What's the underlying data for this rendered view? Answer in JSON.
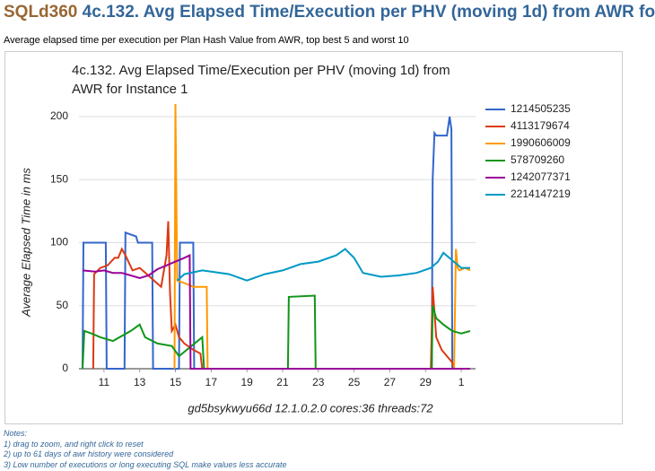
{
  "header": {
    "brand": "SQLd360",
    "title": "4c.132. Avg Elapsed Time/Execution per PHV (moving 1d) from AWR fo"
  },
  "description": "Average elapsed time per execution per Plan Hash Value from AWR, top best 5 and worst 10",
  "chart_data": {
    "type": "line",
    "title": "4c.132. Avg Elapsed Time/Execution per PHV (moving 1d) from AWR for Instance 1",
    "x_label": "gd5bsykwyu66d 12.1.0.2.0 cores:36 threads:72",
    "y_label": "Average Elapsed Time in ms",
    "xlim": [
      9.6,
      31.8
    ],
    "ylim": [
      0,
      210
    ],
    "xticks": [
      11,
      13,
      15,
      17,
      19,
      21,
      23,
      25,
      27,
      29,
      {
        "value": 31,
        "label": "1"
      }
    ],
    "yticks": [
      0,
      50,
      100,
      150,
      200
    ],
    "grid": true,
    "legend": "right",
    "series": [
      {
        "name": "1214505235",
        "color": "#3366cc",
        "x": [
          9.8,
          9.85,
          11.1,
          11.15,
          12.15,
          12.2,
          12.8,
          12.9,
          13.7,
          13.75,
          15.2,
          15.25,
          16.0,
          16.05,
          29.35,
          29.4,
          29.5,
          29.6,
          30.2,
          30.35,
          30.45,
          30.5,
          30.6
        ],
        "values": [
          0,
          100,
          100,
          0,
          0,
          108,
          105,
          100,
          100,
          0,
          0,
          100,
          100,
          0,
          0,
          150,
          187,
          185,
          185,
          200,
          190,
          0,
          0
        ]
      },
      {
        "name": "4113179674",
        "color": "#dc3912",
        "x": [
          10.4,
          10.45,
          10.8,
          11.2,
          11.6,
          11.8,
          12.0,
          12.2,
          12.6,
          13.0,
          13.4,
          13.8,
          14.2,
          14.5,
          14.6,
          14.7,
          14.8,
          15.0,
          15.2,
          15.5,
          16.0,
          16.4,
          16.5,
          null,
          29.3,
          29.4,
          29.6,
          29.9,
          30.2,
          30.5,
          30.6
        ],
        "values": [
          0,
          75,
          80,
          82,
          88,
          88,
          95,
          90,
          78,
          80,
          75,
          70,
          65,
          90,
          117,
          60,
          30,
          35,
          25,
          20,
          15,
          12,
          0,
          null,
          0,
          65,
          25,
          15,
          10,
          5,
          0
        ]
      },
      {
        "name": "1990606009",
        "color": "#ff9900",
        "x": [
          14.95,
          15.0,
          15.1,
          15.5,
          16.0,
          16.75,
          16.8,
          null,
          30.6,
          30.7,
          30.8,
          30.9,
          31.2,
          31.5
        ],
        "values": [
          0,
          210,
          70,
          68,
          65,
          65,
          0,
          null,
          0,
          95,
          80,
          78,
          80,
          78
        ]
      },
      {
        "name": "578709260",
        "color": "#109618",
        "x": [
          9.8,
          9.9,
          10.3,
          10.8,
          11.5,
          12.5,
          13.0,
          13.3,
          14.0,
          14.8,
          15.2,
          16.5,
          16.6,
          21.3,
          21.35,
          22.8,
          22.85,
          29.35,
          29.4,
          29.6,
          30.0,
          30.5,
          31.0,
          31.5
        ],
        "values": [
          0,
          30,
          28,
          25,
          22,
          30,
          35,
          25,
          20,
          18,
          10,
          25,
          0,
          0,
          57,
          58,
          0,
          0,
          50,
          40,
          35,
          30,
          28,
          30
        ]
      },
      {
        "name": "1242077371",
        "color": "#990099",
        "x": [
          9.8,
          10.5,
          11.0,
          11.5,
          12.0,
          12.5,
          13.0,
          13.5,
          14.0,
          14.5,
          15.0,
          15.5,
          15.8,
          15.85,
          31.5
        ],
        "values": [
          78,
          77,
          78,
          76,
          76,
          74,
          72,
          74,
          79,
          82,
          85,
          88,
          90,
          0,
          0
        ]
      },
      {
        "name": "2214147219",
        "color": "#0099c6",
        "x": [
          15.1,
          15.5,
          16.5,
          17.0,
          18.0,
          19.0,
          20.0,
          21.0,
          22.0,
          23.0,
          24.0,
          24.5,
          25.0,
          25.5,
          26.5,
          27.5,
          28.5,
          29.3,
          29.7,
          30.0,
          30.5,
          31.0,
          31.5
        ],
        "values": [
          70,
          75,
          78,
          77,
          75,
          70,
          75,
          78,
          83,
          85,
          90,
          95,
          88,
          76,
          73,
          74,
          76,
          80,
          85,
          92,
          86,
          80,
          80
        ]
      }
    ]
  },
  "notes": {
    "heading": "Notes:",
    "items": [
      "1) drag to zoom, and right click to reset",
      "2) up to 61 days of awr history were considered",
      "3) Low number of executions or long executing SQL make values less accurate"
    ]
  }
}
